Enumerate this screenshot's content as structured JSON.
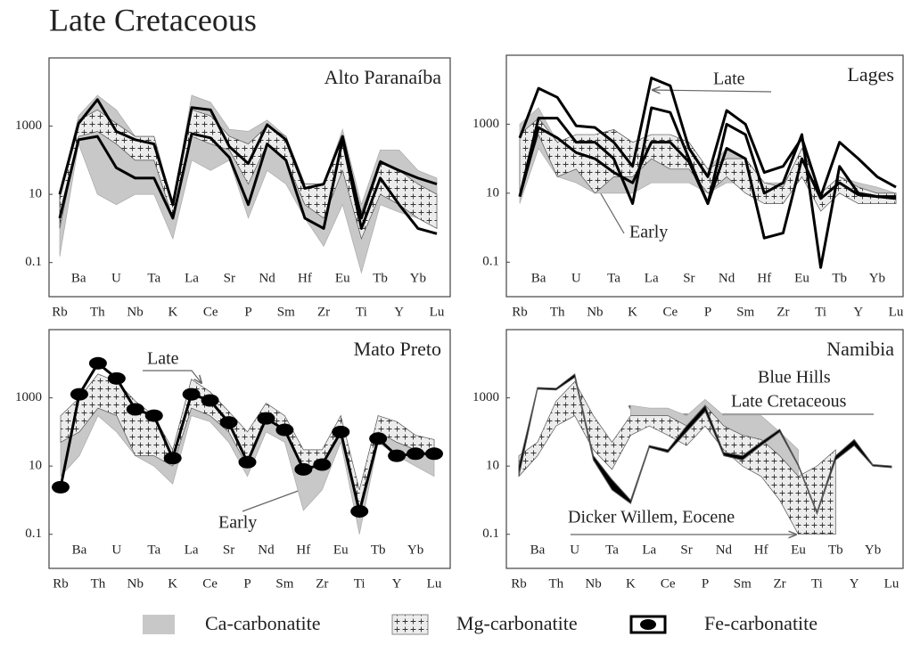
{
  "title": "Late Cretaceous",
  "legend": [
    {
      "name": "Ca-carbonatite",
      "color": "#c8c8c8"
    },
    {
      "name": "Mg-carbonatite",
      "color": "#ececec"
    },
    {
      "name": "Fe-carbonatite",
      "color": "#000000"
    }
  ],
  "chart_data": [
    {
      "type": "spider",
      "title": "Alto Paranaíba",
      "log": true,
      "categories": [
        "Rb",
        "Ba",
        "Th",
        "U",
        "Nb",
        "Ta",
        "K",
        "La",
        "Ce",
        "Sr",
        "P",
        "Nd",
        "Sm",
        "Hf",
        "Zr",
        "Eu",
        "Ti",
        "Tb",
        "Y",
        "Yb",
        "Lu"
      ],
      "ylim": [
        0.01,
        100000
      ],
      "yticks": [
        0.1,
        10,
        1000
      ],
      "series": [
        {
          "legend": 0,
          "low": [
            0.15,
            300,
            10,
            5,
            10,
            10,
            0.5,
            100,
            50,
            100,
            2,
            50,
            20,
            2,
            0.3,
            5,
            0.05,
            5,
            3,
            2,
            1
          ],
          "high": [
            10,
            2000,
            8000,
            3000,
            500,
            500,
            5,
            8000,
            5000,
            800,
            700,
            1500,
            500,
            20,
            20,
            800,
            5,
            200,
            200,
            50,
            30
          ]
        },
        {
          "legend": 1,
          "low": [
            1,
            500,
            700,
            300,
            100,
            100,
            2,
            500,
            300,
            200,
            20,
            300,
            100,
            5,
            2,
            50,
            0.5,
            10,
            5,
            2,
            1
          ],
          "high": [
            10,
            1500,
            3000,
            1200,
            500,
            500,
            5,
            3000,
            2000,
            500,
            300,
            1000,
            500,
            20,
            20,
            400,
            3,
            100,
            50,
            20,
            10
          ]
        },
        {
          "legend": 2,
          "values": [
            10,
            1200,
            6000,
            700,
            400,
            300,
            5,
            3500,
            3000,
            250,
            80,
            1100,
            400,
            15,
            20,
            500,
            2,
            90,
            50,
            30,
            20
          ]
        },
        {
          "legend": 2,
          "values": [
            2,
            400,
            500,
            60,
            30,
            30,
            2,
            600,
            450,
            120,
            5,
            300,
            100,
            2,
            1,
            400,
            1,
            30,
            5,
            1,
            0.7
          ]
        }
      ],
      "annotations": []
    },
    {
      "type": "spider",
      "title": "Lages",
      "log": true,
      "categories": [
        "Rb",
        "Ba",
        "Th",
        "U",
        "Nb",
        "Ta",
        "K",
        "La",
        "Ce",
        "Sr",
        "P",
        "Nd",
        "Sm",
        "Hf",
        "Zr",
        "Eu",
        "Ti",
        "Tb",
        "Y",
        "Yb",
        "Lu"
      ],
      "ylim": [
        0.01,
        100000
      ],
      "yticks": [
        0.1,
        10,
        1000
      ],
      "series": [
        {
          "legend": 0,
          "low": [
            5,
            200,
            30,
            20,
            10,
            10,
            10,
            20,
            20,
            20,
            10,
            20,
            20,
            5,
            5,
            30,
            5,
            10,
            5,
            5,
            5
          ],
          "high": [
            1000,
            3000,
            300,
            300,
            200,
            100,
            100,
            200,
            300,
            200,
            50,
            200,
            100,
            20,
            20,
            100,
            10,
            30,
            20,
            15,
            10
          ]
        },
        {
          "legend": 1,
          "low": [
            10,
            500,
            30,
            50,
            10,
            30,
            30,
            100,
            50,
            50,
            10,
            30,
            10,
            5,
            5,
            30,
            3,
            10,
            5,
            5,
            5
          ],
          "high": [
            500,
            1500,
            300,
            500,
            500,
            700,
            300,
            500,
            500,
            300,
            50,
            100,
            100,
            20,
            15,
            200,
            10,
            30,
            15,
            10,
            10
          ]
        },
        {
          "legend": 2,
          "values": [
            400,
            11000,
            6000,
            900,
            800,
            300,
            60,
            22000,
            13000,
            200,
            30,
            2500,
            1000,
            40,
            60,
            400,
            8,
            300,
            100,
            30,
            15
          ]
        },
        {
          "legend": 2,
          "values": [
            8,
            1500,
            1500,
            300,
            300,
            100,
            5,
            3000,
            2200,
            100,
            5,
            1000,
            500,
            10,
            20,
            500,
            0.07,
            60,
            10,
            8,
            7
          ]
        },
        {
          "legend": 2,
          "values": [
            8,
            800,
            400,
            150,
            100,
            40,
            20,
            300,
            300,
            80,
            5,
            200,
            100,
            0.5,
            0.7,
            100,
            7,
            20,
            9,
            8,
            8
          ]
        }
      ],
      "annotations": [
        "Late",
        "Early"
      ]
    },
    {
      "type": "spider",
      "title": "Mato Preto",
      "log": true,
      "categories": [
        "Rb",
        "Ba",
        "Th",
        "U",
        "Nb",
        "Ta",
        "K",
        "La",
        "Ce",
        "Sr",
        "P",
        "Nd",
        "Sm",
        "Hf",
        "Zr",
        "Eu",
        "Ti",
        "Tb",
        "Y",
        "Yb",
        "Lu"
      ],
      "ylim": [
        0.01,
        100000
      ],
      "yticks": [
        0.1,
        10,
        1000
      ],
      "series": [
        {
          "legend": 0,
          "low": [
            5,
            20,
            300,
            100,
            20,
            10,
            3,
            300,
            200,
            50,
            5,
            100,
            50,
            0.5,
            2,
            50,
            0.1,
            50,
            20,
            10,
            5
          ],
          "high": [
            100,
            500,
            1000,
            600,
            200,
            100,
            30,
            700,
            700,
            300,
            50,
            400,
            200,
            20,
            20,
            300,
            1,
            300,
            100,
            50,
            50
          ]
        },
        {
          "legend": 1,
          "low": [
            50,
            100,
            500,
            300,
            20,
            20,
            10,
            500,
            300,
            100,
            10,
            300,
            100,
            10,
            10,
            100,
            0.3,
            100,
            50,
            30,
            20
          ],
          "high": [
            300,
            1000,
            5000,
            3000,
            800,
            300,
            30,
            3500,
            1500,
            400,
            100,
            700,
            300,
            30,
            30,
            300,
            2,
            300,
            200,
            80,
            60
          ]
        },
        {
          "legend": 2,
          "markers": true,
          "values": [
            2.4,
            1270,
            10300,
            3700,
            460,
            300,
            17,
            1270,
            840,
            190,
            13,
            250,
            115,
            8,
            11,
            100,
            0.47,
            64,
            20,
            23,
            23
          ]
        }
      ],
      "annotations": [
        "Late",
        "Early"
      ]
    },
    {
      "type": "spider",
      "title": "Namibia",
      "log": true,
      "categories": [
        "Rb",
        "Ba",
        "Th",
        "U",
        "Nb",
        "Ta",
        "K",
        "La",
        "Ce",
        "Sr",
        "P",
        "Nd",
        "Sm",
        "Hf",
        "Zr",
        "Eu",
        "Ti",
        "Tb",
        "Y",
        "Yb",
        "Lu"
      ],
      "ylim": [
        0.01,
        100000
      ],
      "yticks": [
        0.1,
        10,
        1000
      ],
      "series": [
        {
          "legend": 0,
          "low": [
            null,
            null,
            null,
            null,
            null,
            null,
            200,
            250,
            150,
            100,
            300,
            100,
            30,
            20,
            5,
            1,
            null,
            null,
            null,
            null,
            null
          ],
          "high": [
            null,
            null,
            null,
            null,
            null,
            null,
            600,
            500,
            500,
            300,
            900,
            300,
            300,
            300,
            100,
            30,
            null,
            null,
            null,
            null,
            null
          ]
        },
        {
          "legend": 1,
          "low": [
            5,
            20,
            150,
            300,
            30,
            8,
            80,
            150,
            80,
            40,
            150,
            30,
            10,
            5,
            1,
            0.1,
            0.1,
            0.1,
            null,
            null,
            null
          ],
          "high": [
            20,
            50,
            800,
            3000,
            300,
            50,
            300,
            300,
            300,
            150,
            600,
            150,
            80,
            60,
            20,
            5,
            10,
            30,
            null,
            null,
            null
          ]
        },
        {
          "legend": 2,
          "low": [
            5,
            1800,
            1700,
            4000,
            15,
            2,
            0.8,
            35,
            25,
            100,
            400,
            20,
            15,
            40,
            100,
            10,
            0.4,
            15,
            40,
            10,
            9
          ],
          "high": [
            10,
            2000,
            1900,
            5000,
            20,
            4,
            1,
            40,
            30,
            150,
            600,
            25,
            20,
            50,
            120,
            11,
            0.45,
            20,
            60,
            11,
            10
          ]
        }
      ],
      "annotations": [
        "Blue Hills",
        "Late Cretaceous",
        "Dicker Willem, Eocene"
      ]
    }
  ]
}
